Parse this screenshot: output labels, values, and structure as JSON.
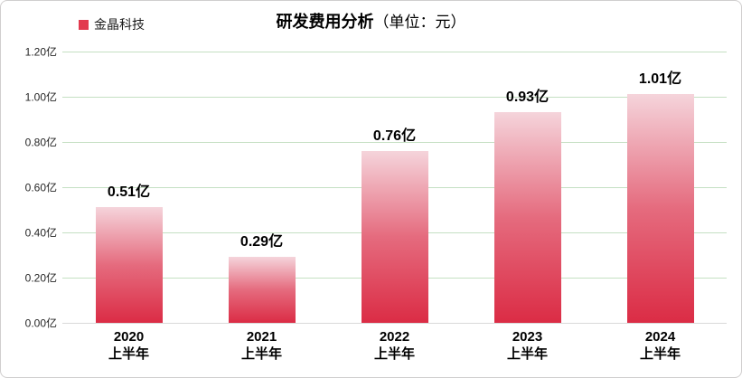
{
  "frame": {
    "background": "#ffffff",
    "border_color": "#d0cece"
  },
  "legend": {
    "label": "金晶科技",
    "swatch_color": "#e23a4e"
  },
  "title": {
    "main": "研发费用分析",
    "unit": "（单位：元）"
  },
  "chart_data": {
    "type": "bar",
    "title": "研发费用分析（单位：元）",
    "legend": [
      "金晶科技"
    ],
    "legend_position": "top-left",
    "categories": [
      "2020 上半年",
      "2021 上半年",
      "2022 上半年",
      "2023 上半年",
      "2024 上半年"
    ],
    "categories_lines": [
      {
        "line1": "2020",
        "line2": "上半年"
      },
      {
        "line1": "2021",
        "line2": "上半年"
      },
      {
        "line1": "2022",
        "line2": "上半年"
      },
      {
        "line1": "2023",
        "line2": "上半年"
      },
      {
        "line1": "2024",
        "line2": "上半年"
      }
    ],
    "series": [
      {
        "name": "金晶科技",
        "values": [
          0.51,
          0.29,
          0.76,
          0.93,
          1.01
        ]
      }
    ],
    "values": [
      0.51,
      0.29,
      0.76,
      0.93,
      1.01
    ],
    "value_labels": [
      "0.51亿",
      "0.29亿",
      "0.76亿",
      "0.93亿",
      "1.01亿"
    ],
    "xlabel": "",
    "ylabel": "",
    "ylim": [
      0,
      1.2
    ],
    "grid": true,
    "y_ticks": [
      {
        "value": 1.2,
        "label": "1.20亿"
      },
      {
        "value": 1.0,
        "label": "1.00亿"
      },
      {
        "value": 0.8,
        "label": "0.80亿"
      },
      {
        "value": 0.6,
        "label": "0.60亿"
      },
      {
        "value": 0.4,
        "label": "0.40亿"
      },
      {
        "value": 0.2,
        "label": "0.20亿"
      },
      {
        "value": 0.0,
        "label": "0.00亿"
      }
    ],
    "colors": {
      "bar_gradient_top": "#f5d4db",
      "bar_gradient_mid": "#e56b7e",
      "bar_gradient_bottom": "#db2c45",
      "gridline": "#c5e0c3",
      "baseline": "#d9d9d9",
      "label_text": "#000000"
    }
  }
}
